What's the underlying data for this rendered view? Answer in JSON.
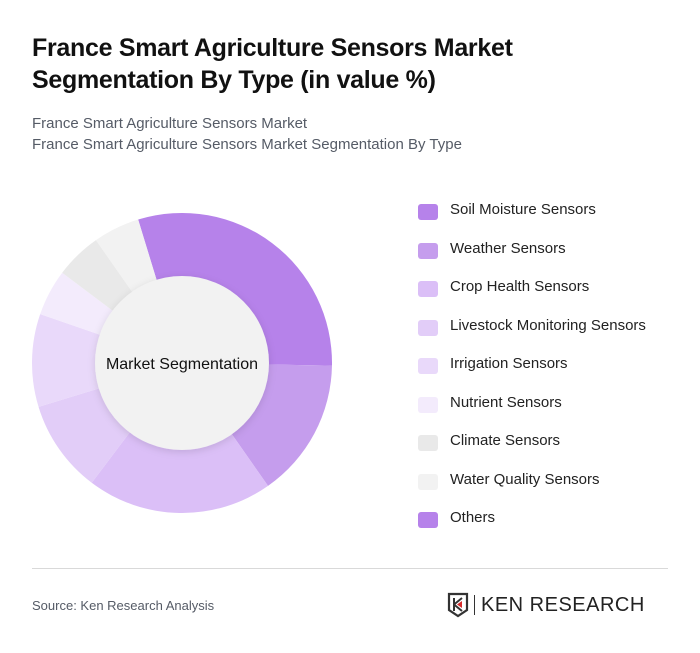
{
  "header": {
    "title": "France Smart Agriculture Sensors Market Segmentation By Type (in value %)",
    "subtitle_line1": "France Smart Agriculture Sensors Market",
    "subtitle_line2": "France Smart Agriculture Sensors Market Segmentation By Type"
  },
  "chart_data": {
    "type": "pie",
    "variant": "donut",
    "title": "France Smart Agriculture Sensors Market Segmentation By Type (in value %)",
    "center_label": "Market Segmentation",
    "categories": [
      "Soil Moisture Sensors",
      "Weather Sensors",
      "Crop Health Sensors",
      "Livestock Monitoring Sensors",
      "Irrigation Sensors",
      "Nutrient Sensors",
      "Climate Sensors",
      "Water Quality Sensors",
      "Others"
    ],
    "values": [
      30,
      15,
      20,
      10,
      10,
      5,
      5,
      5,
      0
    ],
    "colors": [
      "#b682ea",
      "#c59ded",
      "#dbbff7",
      "#e2cdf8",
      "#e9d9fa",
      "#f3ebfc",
      "#e9e9e9",
      "#f2f2f2",
      "#b682ea"
    ],
    "start_angle_deg": -17,
    "legend_position": "right"
  },
  "legend": {
    "items": [
      {
        "label": "Soil Moisture Sensors",
        "color": "#b682ea"
      },
      {
        "label": "Weather Sensors",
        "color": "#c59ded"
      },
      {
        "label": "Crop Health Sensors",
        "color": "#dbbff7"
      },
      {
        "label": "Livestock Monitoring Sensors",
        "color": "#e2cdf8"
      },
      {
        "label": "Irrigation Sensors",
        "color": "#e9d9fa"
      },
      {
        "label": "Nutrient Sensors",
        "color": "#f3ebfc"
      },
      {
        "label": "Climate Sensors",
        "color": "#e9e9e9"
      },
      {
        "label": "Water Quality Sensors",
        "color": "#f2f2f2"
      },
      {
        "label": "Others",
        "color": "#b682ea"
      }
    ]
  },
  "footer": {
    "source": "Source: Ken Research Analysis",
    "logo_text": "KEN RESEARCH"
  }
}
